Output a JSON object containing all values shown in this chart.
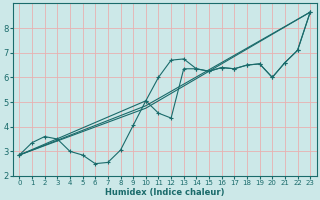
{
  "xlabel": "Humidex (Indice chaleur)",
  "bg_color": "#cce8e8",
  "grid_color": "#e8b0b0",
  "line_color": "#1a6b6b",
  "xlim": [
    -0.5,
    23.5
  ],
  "ylim": [
    2,
    9
  ],
  "xticks": [
    0,
    1,
    2,
    3,
    4,
    5,
    6,
    7,
    8,
    9,
    10,
    11,
    12,
    13,
    14,
    15,
    16,
    17,
    18,
    19,
    20,
    21,
    22,
    23
  ],
  "yticks": [
    2,
    3,
    4,
    5,
    6,
    7,
    8
  ],
  "line1_x": [
    0,
    1,
    2,
    3,
    4,
    5,
    6,
    7,
    8,
    9,
    10,
    11,
    12,
    13,
    14,
    15,
    16,
    17,
    18,
    19,
    20,
    21,
    22,
    23
  ],
  "line1_y": [
    2.85,
    3.35,
    3.6,
    3.5,
    3.0,
    2.85,
    2.5,
    2.55,
    3.05,
    4.05,
    5.05,
    6.0,
    6.7,
    6.75,
    6.35,
    6.25,
    6.4,
    6.35,
    6.5,
    6.55,
    6.0,
    6.6,
    7.1,
    8.65
  ],
  "line2_x": [
    0,
    10,
    11,
    12,
    13,
    14,
    15,
    16,
    17,
    18,
    19,
    20,
    21,
    22,
    23
  ],
  "line2_y": [
    2.85,
    5.05,
    4.55,
    4.35,
    6.35,
    6.35,
    6.25,
    6.4,
    6.35,
    6.5,
    6.55,
    6.0,
    6.6,
    7.1,
    8.65
  ],
  "line3_x": [
    0,
    10,
    23
  ],
  "line3_y": [
    2.85,
    4.85,
    8.65
  ],
  "line4_x": [
    0,
    10,
    23
  ],
  "line4_y": [
    2.85,
    4.75,
    8.65
  ]
}
